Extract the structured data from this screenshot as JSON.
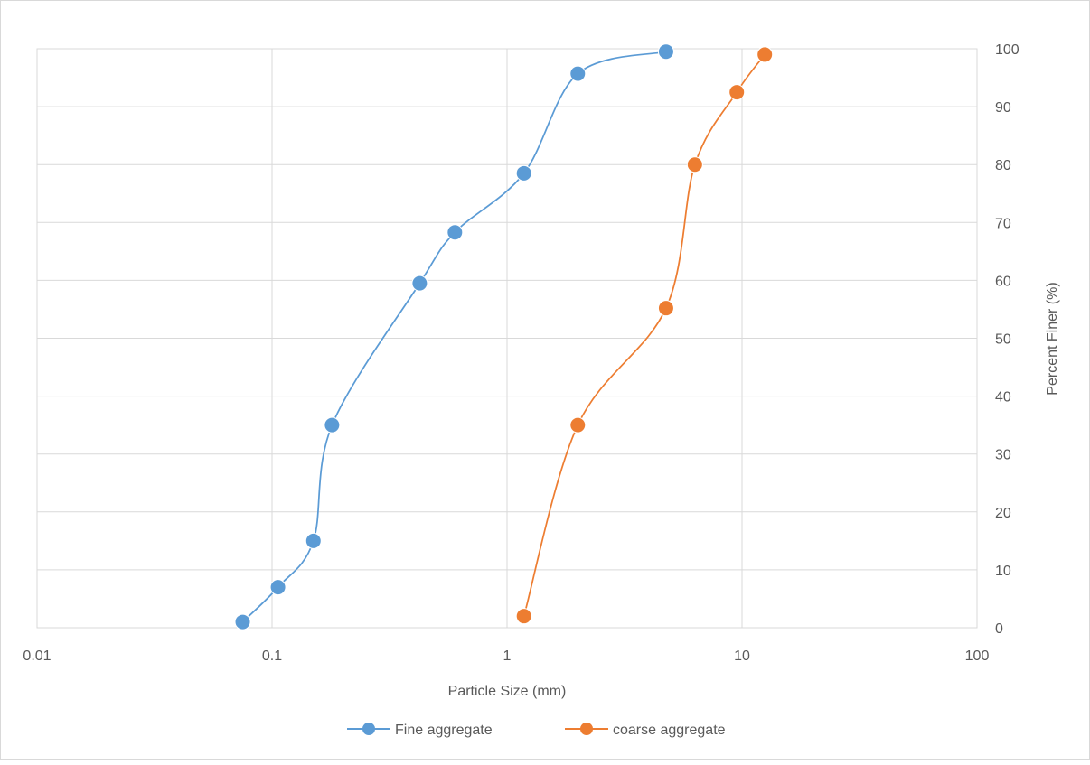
{
  "chart_data": {
    "type": "scatter",
    "title": "",
    "xlabel": "Particle Size (mm)",
    "ylabel": "Percent Finer (%)",
    "xscale": "log",
    "xlim": [
      0.01,
      100
    ],
    "ylim": [
      0,
      100
    ],
    "x_ticks": [
      "0.01",
      "0.1",
      "1",
      "10",
      "100"
    ],
    "y_ticks": [
      "0",
      "10",
      "20",
      "30",
      "40",
      "50",
      "60",
      "70",
      "80",
      "90",
      "100"
    ],
    "y_axis_side": "right",
    "grid": true,
    "legend_position": "bottom",
    "series": [
      {
        "name": "Fine aggregate",
        "color": "#5b9bd5",
        "x": [
          0.075,
          0.106,
          0.15,
          0.18,
          0.425,
          0.6,
          1.18,
          2.0,
          4.75
        ],
        "y": [
          1,
          7,
          15,
          35,
          59.5,
          68.3,
          78.5,
          95.7,
          99.5
        ]
      },
      {
        "name": "coarse aggregate",
        "color": "#ed7d31",
        "x": [
          1.18,
          2.0,
          4.75,
          6.3,
          9.5,
          12.5
        ],
        "y": [
          2,
          35,
          55.2,
          80,
          92.5,
          99
        ]
      }
    ]
  }
}
